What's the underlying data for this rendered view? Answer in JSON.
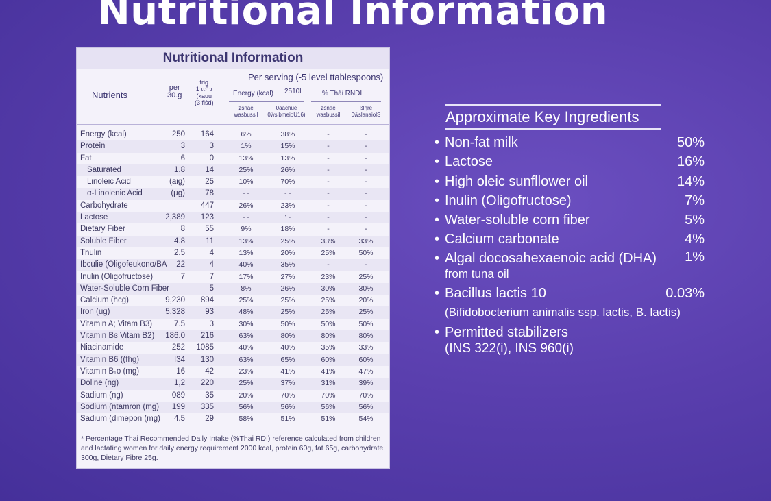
{
  "main_title": "Nutritional Information",
  "panel": {
    "title": "Nutritional Information",
    "headers": {
      "nutrients": "Nutrients",
      "per": "per",
      "per_amount": "30.g",
      "frig": "frig",
      "frig_l2": "1 แก้ว",
      "frig_l3": "(kauu",
      "frig_l4": "(3 fiŝd)",
      "per_serving": "Per serving (-5 level ttablespoons)",
      "energy": "Energy  (kcal)",
      "col_2510": "2510l",
      "rdi": "% Thái  RNDI",
      "sub1_l1": "zsnaẽ",
      "sub1_l2": "wasbussil",
      "sub2_l1": "0aachue",
      "sub2_l2": "0ẅslbmeioU16)",
      "sub3_l1": "zsnaẽ",
      "sub3_l2": "wasbussil",
      "sub4_l1": "ßlηrẽ",
      "sub4_l2": "0ẅslanaiolS"
    },
    "rows": [
      {
        "name": "Energy  (kcal)",
        "a": "250",
        "b": "164",
        "c": "6%",
        "d": "38%",
        "e": "-",
        "f": "-"
      },
      {
        "name": "Protein",
        "a": "3",
        "b": "3",
        "c": "1%",
        "d": "15%",
        "e": "-",
        "f": "-"
      },
      {
        "name": "Fat",
        "a": "6",
        "b": "0",
        "c": "13%",
        "d": "13%",
        "e": "-",
        "f": "-"
      },
      {
        "name": "Saturated",
        "a": "1.8",
        "b": "14",
        "c": "25%",
        "d": "26%",
        "e": "-",
        "f": "-"
      },
      {
        "name": "Linoleic  Acid",
        "a": "(aig)",
        "b": "25",
        "c": "10%",
        "d": "70%",
        "e": "-",
        "f": "-"
      },
      {
        "name": "α-Linolenic  Acid",
        "a": "(μg)",
        "b": "78",
        "c": "- -",
        "d": "- -",
        "e": "-",
        "f": "-"
      },
      {
        "name": "Carbohydrate",
        "a": "",
        "b": "447",
        "c": "26%",
        "d": "23%",
        "e": "-",
        "f": "-"
      },
      {
        "name": "Lactose",
        "a": "2,389",
        "b": "123",
        "c": "- -",
        "d": "' -",
        "e": "-",
        "f": "-"
      },
      {
        "name": "Dietary  Fiber",
        "a": "8",
        "b": "55",
        "c": "9%",
        "d": "18%",
        "e": "-",
        "f": "-"
      },
      {
        "name": "Soluble  Fiber",
        "a": "4.8",
        "b": "11",
        "c": "13%",
        "d": "25%",
        "e": "33%",
        "f": "33%"
      },
      {
        "name": "Tnulin",
        "a": "2.5",
        "b": "4",
        "c": "13%",
        "d": "20%",
        "e": "25%",
        "f": "50%"
      },
      {
        "name": "Ibculie (Oligofeukono/BA",
        "a": "22",
        "b": "4",
        "c": "40%",
        "d": "35%",
        "e": "-",
        "f": "-"
      },
      {
        "name": "Inulin  (Oligofructose)",
        "a": "7",
        "b": "7",
        "c": "17%",
        "d": "27%",
        "e": "23%",
        "f": "25%"
      },
      {
        "name": "Water-Soluble  Corn  Fiber",
        "a": "",
        "b": "5",
        "c": "8%",
        "d": "26%",
        "e": "30%",
        "f": "30%"
      },
      {
        "name": "Calcium  (hcg)",
        "a": "9,230",
        "b": "894",
        "c": "25%",
        "d": "25%",
        "e": "25%",
        "f": "20%"
      },
      {
        "name": "Iron  (ug)",
        "a": "5,328",
        "b": "93",
        "c": "48%",
        "d": "25%",
        "e": "25%",
        "f": "25%"
      },
      {
        "name": "Vitamin A; Vitam B3)",
        "a": "7.5",
        "b": "3",
        "c": "30%",
        "d": "50%",
        "e": "50%",
        "f": "50%"
      },
      {
        "name": "Vitamin Bɞ Vitam B2)",
        "a": "186.0",
        "b": "216",
        "c": "63%",
        "d": "80%",
        "e": "80%",
        "f": "80%"
      },
      {
        "name": "Niacinamide",
        "a": "252",
        "b": "1085",
        "c": "40%",
        "d": "40%",
        "e": "35%",
        "f": "33%"
      },
      {
        "name": "Vitamin B6 ((fhg)",
        "a": "I34",
        "b": "130",
        "c": "63%",
        "d": "65%",
        "e": "60%",
        "f": "60%"
      },
      {
        "name": "Vitamin B₁o  (mg)",
        "a": "16",
        "b": "42",
        "c": "23%",
        "d": "41%",
        "e": "41%",
        "f": "47%"
      },
      {
        "name": "Doline  (ng)",
        "a": "1,2",
        "b": "220",
        "c": "25%",
        "d": "37%",
        "e": "31%",
        "f": "39%"
      },
      {
        "name": "Sadium  (ng)",
        "a": "089",
        "b": "35",
        "c": "20%",
        "d": "70%",
        "e": "70%",
        "f": "70%"
      },
      {
        "name": "Sodium  (ntamron  (mg)",
        "a": "199",
        "b": "335",
        "c": "56%",
        "d": "56%",
        "e": "56%",
        "f": "56%"
      },
      {
        "name": "Sadium  (dimepon  (mg)",
        "a": "4.5",
        "b": "29",
        "c": "58%",
        "d": "51%",
        "e": "51%",
        "f": "54%"
      }
    ],
    "footnote": "* Percentage Thai Recommended Daily Intake (%Thai RDI) reference calculated from children and lactating women for daily energy requirement 2000 kcal, protein 60g, fat 65g, carbohydrate 300g, Dietary Fibre 25g."
  },
  "key_ingredients": {
    "title": "Approximate Key Ingredients",
    "items": [
      {
        "name": "Non-fat milk",
        "pct": "50%"
      },
      {
        "name": "Lactose",
        "pct": "16%"
      },
      {
        "name": "High oleic sunfllower oil",
        "pct": "14%"
      },
      {
        "name": "Inulin (Oligofructose)",
        "pct": "7%"
      },
      {
        "name": "Water-soluble corn fiber",
        "pct": "5%"
      },
      {
        "name": "Calcium carbonate",
        "pct": "4%"
      },
      {
        "name": "Algal docosahexaenoic acid (DHA)",
        "pct": "1%",
        "sub": "from tuna oil"
      },
      {
        "name": "Bacillus lactis 10",
        "pct": "0.03%",
        "sub": "(Bifidobocterium animalis ssp. lactis, B. lactis)"
      },
      {
        "name": "Permitted stabilizers",
        "pct": "",
        "sub": "(INS 322(i), INS 960(i)"
      }
    ]
  }
}
